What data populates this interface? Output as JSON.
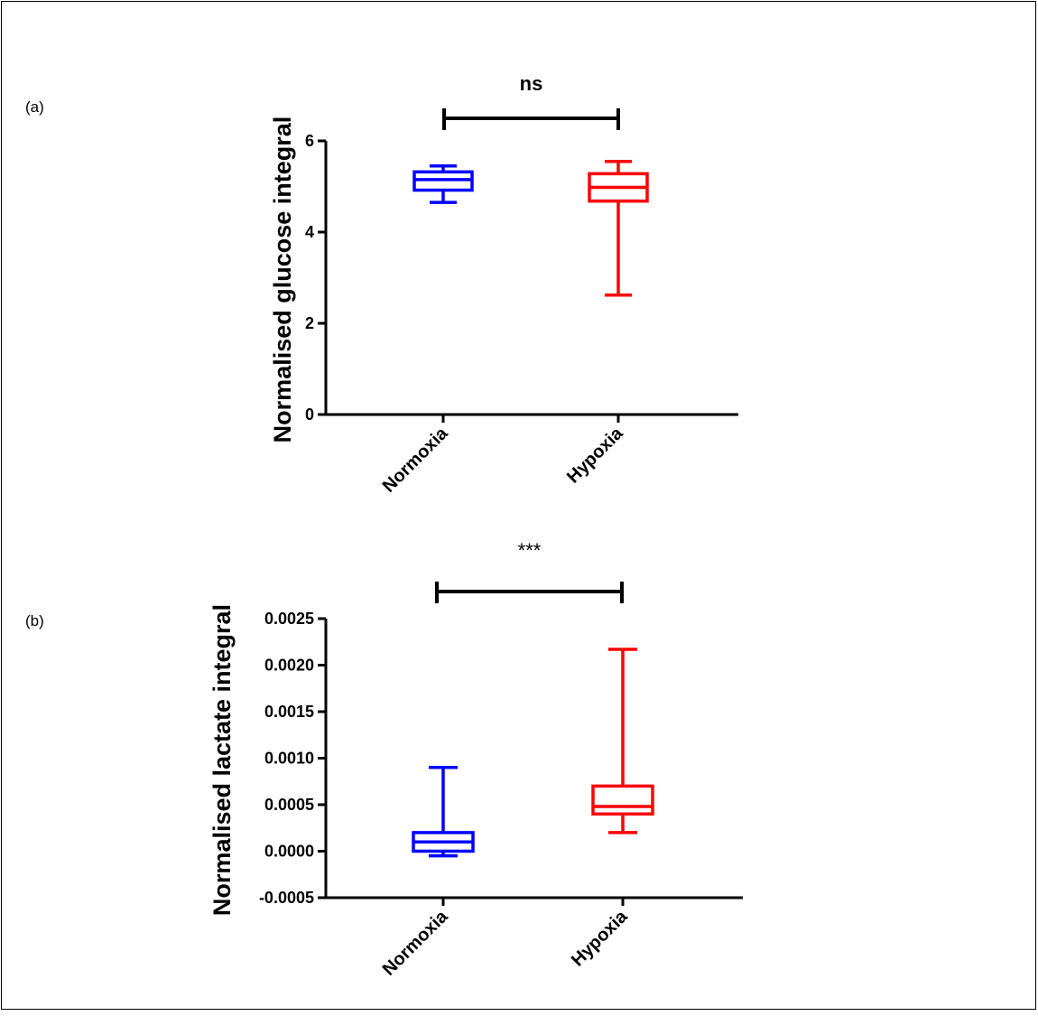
{
  "figure": {
    "frame_color": "#000000"
  },
  "chart_data": [
    {
      "panel_label": "(a)",
      "type": "box",
      "title": "",
      "xlabel": "",
      "ylabel": "Normalised glucose integral",
      "categories": [
        "Normoxia",
        "Hypoxia"
      ],
      "ylim": [
        0,
        6
      ],
      "yticks": [
        0,
        2,
        4,
        6
      ],
      "ytick_labels": [
        "0",
        "2",
        "4",
        "6"
      ],
      "series": [
        {
          "category": "Normoxia",
          "color": "#0000ff",
          "min": 4.65,
          "q1": 4.92,
          "median": 5.15,
          "q3": 5.32,
          "max": 5.45
        },
        {
          "category": "Hypoxia",
          "color": "#ff0000",
          "min": 2.62,
          "q1": 4.68,
          "median": 4.98,
          "q3": 5.28,
          "max": 5.55
        }
      ],
      "significance": {
        "label": "ns",
        "between": [
          "Normoxia",
          "Hypoxia"
        ],
        "bold": true
      },
      "grid": false,
      "legend": "none"
    },
    {
      "panel_label": "(b)",
      "type": "box",
      "title": "",
      "xlabel": "",
      "ylabel": "Normalised lactate integral",
      "categories": [
        "Normoxia",
        "Hypoxia"
      ],
      "ylim": [
        -0.0005,
        0.0025
      ],
      "yticks": [
        -0.0005,
        0.0,
        0.0005,
        0.001,
        0.0015,
        0.002,
        0.0025
      ],
      "ytick_labels": [
        "-0.0005",
        "0.0000",
        "0.0005",
        "0.0010",
        "0.0015",
        "0.0020",
        "0.0025"
      ],
      "series": [
        {
          "category": "Normoxia",
          "color": "#0000ff",
          "min": -5e-05,
          "q1": 0.0,
          "median": 0.0001,
          "q3": 0.0002,
          "max": 0.0009
        },
        {
          "category": "Hypoxia",
          "color": "#ff0000",
          "min": 0.0002,
          "q1": 0.0004,
          "median": 0.00048,
          "q3": 0.0007,
          "max": 0.00217
        }
      ],
      "significance": {
        "label": "***",
        "between": [
          "Normoxia",
          "Hypoxia"
        ],
        "bold": false
      },
      "grid": false,
      "legend": "none"
    }
  ]
}
